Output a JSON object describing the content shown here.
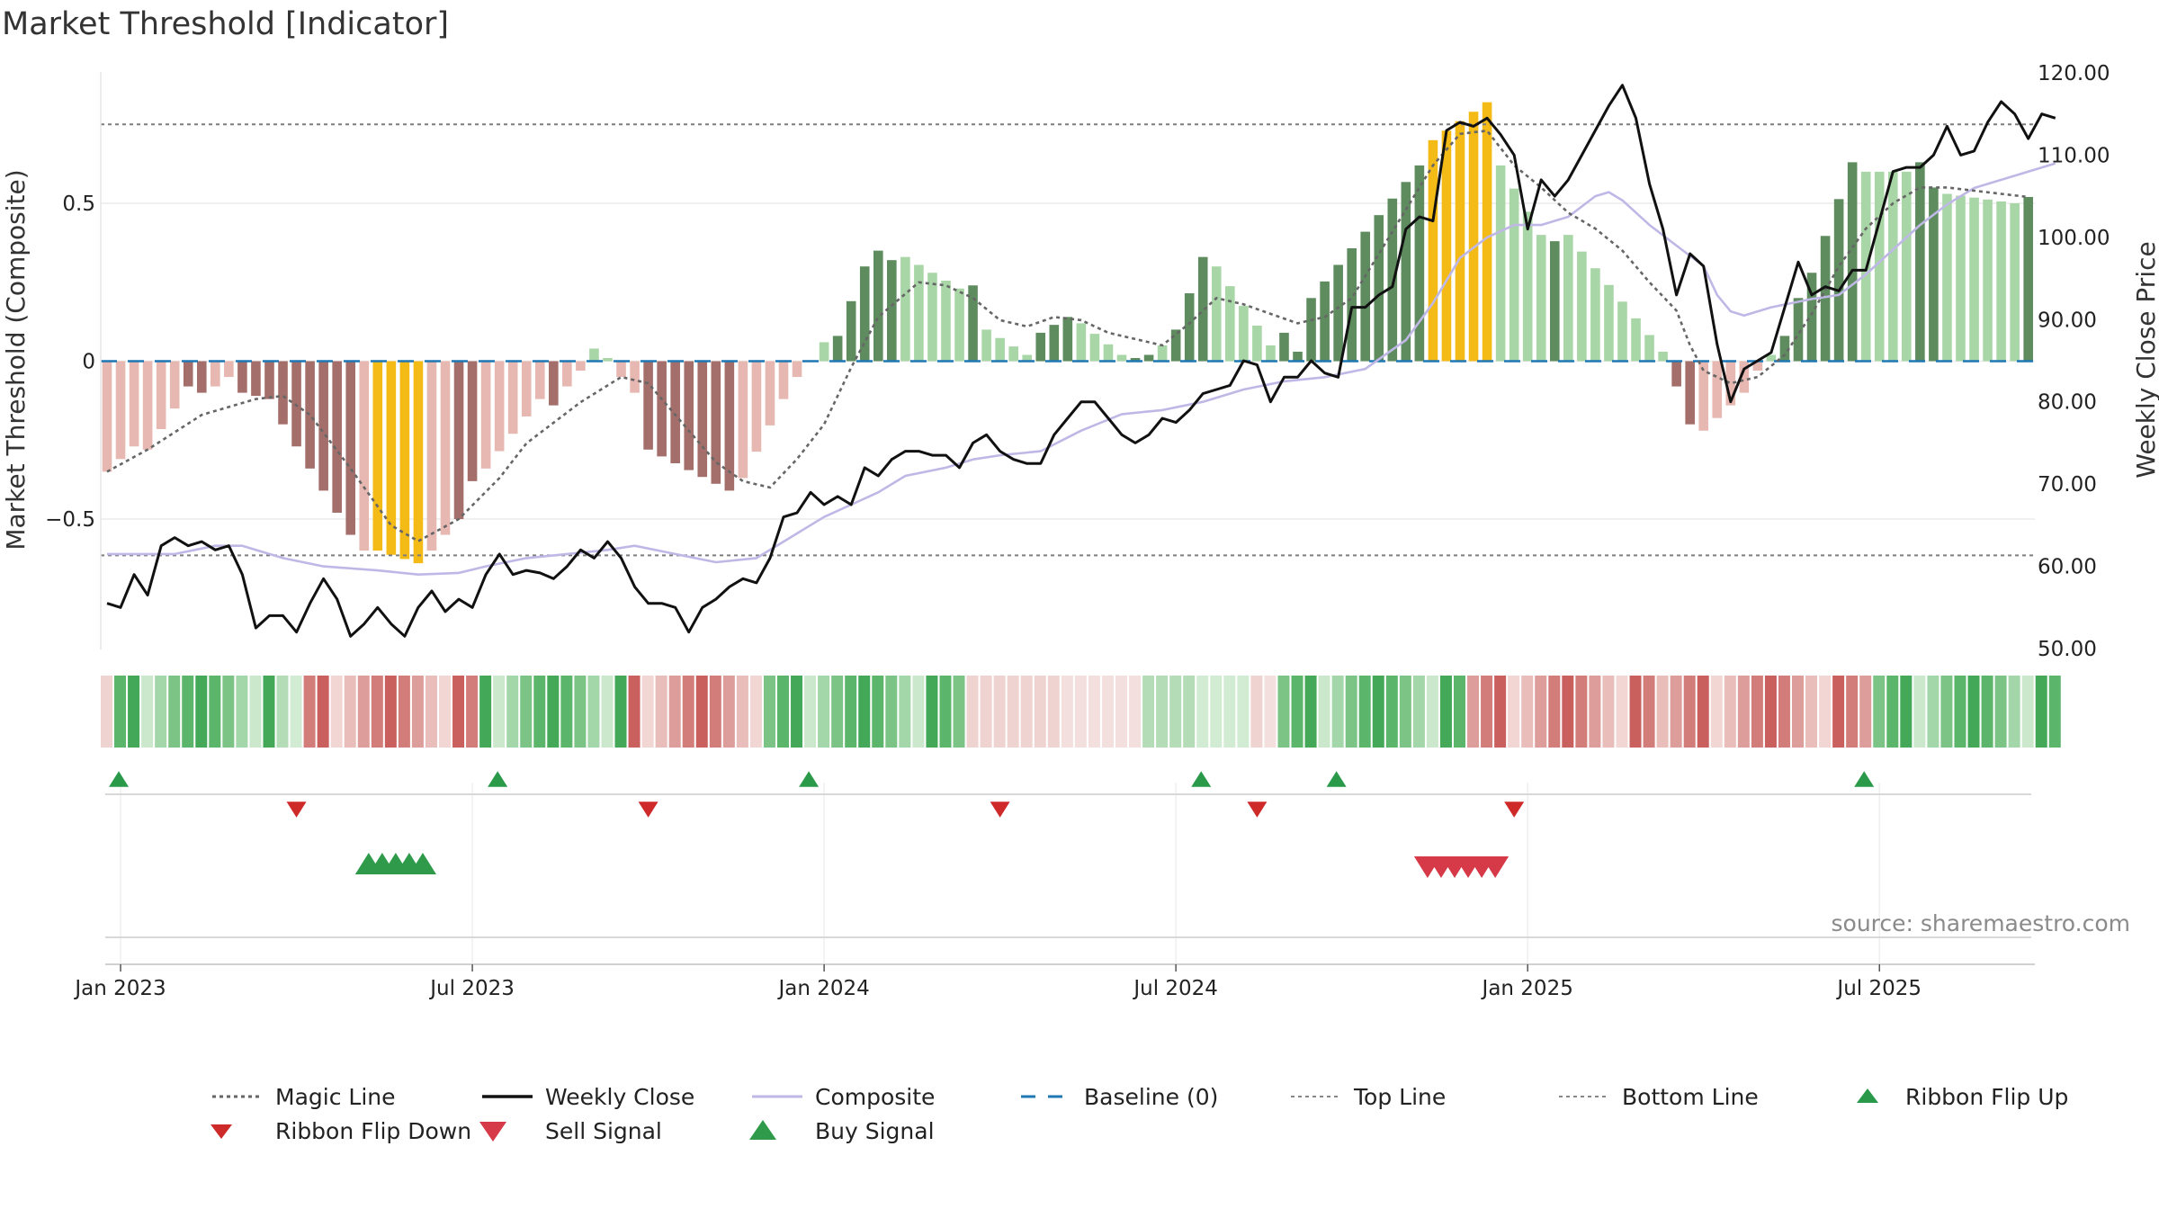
{
  "chart_data": {
    "type": "composite-indicator",
    "title": "Market Threshold [Indicator]",
    "ylabel_left": "Market Threshold (Composite)",
    "ylabel_right": "Weekly Close Price",
    "ylim_left": [
      -0.92,
      0.92
    ],
    "ylim_right": [
      50,
      120
    ],
    "yticks_left": [
      {
        "v": 0.5,
        "label": "0.5"
      },
      {
        "v": 0,
        "label": "0"
      },
      {
        "v": -0.5,
        "label": "−0.5"
      }
    ],
    "yticks_right": [
      {
        "v": 120,
        "label": "120.00"
      },
      {
        "v": 110,
        "label": "110.00"
      },
      {
        "v": 100,
        "label": "100.00"
      },
      {
        "v": 90,
        "label": "90.00"
      },
      {
        "v": 80,
        "label": "80.00"
      },
      {
        "v": 70,
        "label": "70.00"
      },
      {
        "v": 60,
        "label": "60.00"
      },
      {
        "v": 50,
        "label": "50.00"
      }
    ],
    "x_start": "2022-12-26",
    "week_count": 143,
    "x_ticks": [
      {
        "w": 1,
        "label": "Jan 2023"
      },
      {
        "w": 27,
        "label": "Jul 2023"
      },
      {
        "w": 53,
        "label": "Jan 2024"
      },
      {
        "w": 79,
        "label": "Jul 2024"
      },
      {
        "w": 105,
        "label": "Jan 2025"
      },
      {
        "w": 131,
        "label": "Jul 2025"
      }
    ],
    "top_line": 0.75,
    "bottom_line": -0.615,
    "baseline": 0,
    "bar_segments": [
      [
        0,
        -0.35,
        -0.27,
        "light-red"
      ],
      [
        3,
        -0.28,
        -0.15,
        "light-red"
      ],
      [
        6,
        -0.08,
        -0.1,
        "red"
      ],
      [
        8,
        -0.08,
        -0.05,
        "light-red"
      ],
      [
        10,
        -0.1,
        -0.11,
        "red"
      ],
      [
        12,
        -0.12,
        -0.2,
        "red"
      ],
      [
        14,
        -0.27,
        -0.55,
        "red"
      ],
      [
        19,
        -0.6,
        -0.62,
        "light-red"
      ],
      [
        20,
        -0.6,
        -0.64,
        "yellow"
      ],
      [
        24,
        -0.6,
        -0.55,
        "light-red"
      ],
      [
        26,
        -0.5,
        -0.38,
        "red"
      ],
      [
        28,
        -0.34,
        -0.12,
        "light-red"
      ],
      [
        33,
        -0.14,
        -0.14,
        "red"
      ],
      [
        34,
        -0.08,
        -0.03,
        "light-red"
      ],
      [
        36,
        0.04,
        0.01,
        "light-green"
      ],
      [
        38,
        -0.05,
        -0.1,
        "light-red"
      ],
      [
        40,
        -0.28,
        -0.41,
        "red"
      ],
      [
        47,
        -0.37,
        -0.12,
        "light-red"
      ],
      [
        51,
        -0.05,
        0.0,
        "light-red"
      ],
      [
        53,
        0.06,
        0.06,
        "light-green"
      ],
      [
        54,
        0.08,
        0.3,
        "green"
      ],
      [
        57,
        0.35,
        0.32,
        "green"
      ],
      [
        59,
        0.33,
        0.23,
        "light-green"
      ],
      [
        64,
        0.24,
        0.12,
        "green"
      ],
      [
        65,
        0.1,
        0.02,
        "light-green"
      ],
      [
        69,
        0.09,
        0.14,
        "green"
      ],
      [
        72,
        0.12,
        0.02,
        "light-green"
      ],
      [
        76,
        0.01,
        0.02,
        "green"
      ],
      [
        78,
        0.05,
        0.05,
        "light-green"
      ],
      [
        79,
        0.1,
        0.33,
        "green"
      ],
      [
        82,
        0.3,
        0.05,
        "light-green"
      ],
      [
        87,
        0.09,
        0.03,
        "green"
      ],
      [
        89,
        0.2,
        0.62,
        "green"
      ],
      [
        98,
        0.7,
        0.82,
        "yellow"
      ],
      [
        103,
        0.62,
        0.4,
        "light-green"
      ],
      [
        107,
        0.38,
        0.4,
        "green"
      ],
      [
        108,
        0.4,
        0.03,
        "light-green"
      ],
      [
        116,
        -0.08,
        -0.2,
        "red"
      ],
      [
        118,
        -0.22,
        -0.1,
        "light-red"
      ],
      [
        122,
        -0.03,
        0.02,
        "light-red"
      ],
      [
        123,
        0.02,
        0.04,
        "light-green"
      ],
      [
        124,
        0.08,
        0.2,
        "green"
      ],
      [
        126,
        0.28,
        0.63,
        "green"
      ],
      [
        130,
        0.6,
        0.6,
        "light-green"
      ],
      [
        134,
        0.63,
        0.55,
        "green"
      ],
      [
        136,
        0.53,
        0.5,
        "light-green"
      ],
      [
        142,
        0.52,
        0.52,
        "green"
      ]
    ],
    "magic_line": [
      [
        0,
        -0.35
      ],
      [
        3,
        -0.28
      ],
      [
        7,
        -0.17
      ],
      [
        11,
        -0.12
      ],
      [
        13,
        -0.11
      ],
      [
        15,
        -0.17
      ],
      [
        18,
        -0.34
      ],
      [
        21,
        -0.52
      ],
      [
        23,
        -0.57
      ],
      [
        26,
        -0.5
      ],
      [
        29,
        -0.37
      ],
      [
        31,
        -0.26
      ],
      [
        35,
        -0.13
      ],
      [
        38,
        -0.05
      ],
      [
        40,
        -0.07
      ],
      [
        42,
        -0.17
      ],
      [
        45,
        -0.32
      ],
      [
        47,
        -0.38
      ],
      [
        49,
        -0.4
      ],
      [
        51,
        -0.31
      ],
      [
        53,
        -0.2
      ],
      [
        55,
        -0.02
      ],
      [
        57,
        0.14
      ],
      [
        60,
        0.25
      ],
      [
        62,
        0.24
      ],
      [
        64,
        0.2
      ],
      [
        66,
        0.13
      ],
      [
        68,
        0.11
      ],
      [
        70,
        0.14
      ],
      [
        72,
        0.13
      ],
      [
        74,
        0.09
      ],
      [
        76,
        0.07
      ],
      [
        78,
        0.05
      ],
      [
        80,
        0.12
      ],
      [
        82,
        0.2
      ],
      [
        84,
        0.18
      ],
      [
        86,
        0.15
      ],
      [
        88,
        0.12
      ],
      [
        90,
        0.14
      ],
      [
        92,
        0.2
      ],
      [
        94,
        0.34
      ],
      [
        96,
        0.48
      ],
      [
        98,
        0.62
      ],
      [
        100,
        0.72
      ],
      [
        102,
        0.73
      ],
      [
        104,
        0.62
      ],
      [
        106,
        0.55
      ],
      [
        108,
        0.47
      ],
      [
        110,
        0.42
      ],
      [
        112,
        0.35
      ],
      [
        114,
        0.25
      ],
      [
        116,
        0.16
      ],
      [
        117,
        0.05
      ],
      [
        118,
        -0.03
      ],
      [
        120,
        -0.07
      ],
      [
        122,
        -0.05
      ],
      [
        124,
        0.02
      ],
      [
        126,
        0.15
      ],
      [
        128,
        0.3
      ],
      [
        130,
        0.42
      ],
      [
        132,
        0.5
      ],
      [
        134,
        0.55
      ],
      [
        136,
        0.55
      ],
      [
        138,
        0.54
      ],
      [
        140,
        0.53
      ],
      [
        142,
        0.52
      ]
    ],
    "weekly_close": [
      [
        0,
        55.5
      ],
      [
        1,
        55
      ],
      [
        2,
        59
      ],
      [
        3,
        56.5
      ],
      [
        4,
        62.5
      ],
      [
        5,
        63.5
      ],
      [
        6,
        62.5
      ],
      [
        7,
        63
      ],
      [
        8,
        62
      ],
      [
        9,
        62.5
      ],
      [
        10,
        59
      ],
      [
        11,
        52.5
      ],
      [
        12,
        54
      ],
      [
        13,
        54
      ],
      [
        14,
        52
      ],
      [
        15,
        55.5
      ],
      [
        16,
        58.5
      ],
      [
        17,
        56
      ],
      [
        18,
        51.5
      ],
      [
        19,
        53
      ],
      [
        20,
        55
      ],
      [
        21,
        53
      ],
      [
        22,
        51.5
      ],
      [
        23,
        55
      ],
      [
        24,
        57
      ],
      [
        25,
        54.5
      ],
      [
        26,
        56
      ],
      [
        27,
        55
      ],
      [
        28,
        59
      ],
      [
        29,
        61.5
      ],
      [
        30,
        59
      ],
      [
        31,
        59.5
      ],
      [
        32,
        59.2
      ],
      [
        33,
        58.5
      ],
      [
        34,
        60
      ],
      [
        35,
        62
      ],
      [
        36,
        61
      ],
      [
        37,
        63
      ],
      [
        38,
        61
      ],
      [
        39,
        57.5
      ],
      [
        40,
        55.5
      ],
      [
        41,
        55.5
      ],
      [
        42,
        55
      ],
      [
        43,
        52
      ],
      [
        44,
        55
      ],
      [
        45,
        56
      ],
      [
        46,
        57.5
      ],
      [
        47,
        58.5
      ],
      [
        48,
        58
      ],
      [
        49,
        61
      ],
      [
        50,
        66
      ],
      [
        51,
        66.5
      ],
      [
        52,
        69
      ],
      [
        53,
        67.5
      ],
      [
        54,
        68.5
      ],
      [
        55,
        67.5
      ],
      [
        56,
        72
      ],
      [
        57,
        71
      ],
      [
        58,
        73
      ],
      [
        59,
        74
      ],
      [
        60,
        74
      ],
      [
        61,
        73.5
      ],
      [
        62,
        73.5
      ],
      [
        63,
        72
      ],
      [
        64,
        75
      ],
      [
        65,
        76
      ],
      [
        66,
        74
      ],
      [
        67,
        73
      ],
      [
        68,
        72.5
      ],
      [
        69,
        72.5
      ],
      [
        70,
        76
      ],
      [
        71,
        78
      ],
      [
        72,
        80
      ],
      [
        73,
        80
      ],
      [
        74,
        78
      ],
      [
        75,
        76
      ],
      [
        76,
        75
      ],
      [
        77,
        76
      ],
      [
        78,
        78
      ],
      [
        79,
        77.5
      ],
      [
        80,
        79
      ],
      [
        81,
        81
      ],
      [
        82,
        81.5
      ],
      [
        83,
        82
      ],
      [
        84,
        85
      ],
      [
        85,
        84.5
      ],
      [
        86,
        80
      ],
      [
        87,
        83
      ],
      [
        88,
        83
      ],
      [
        89,
        85
      ],
      [
        90,
        83.5
      ],
      [
        91,
        83
      ],
      [
        92,
        91.5
      ],
      [
        93,
        91.5
      ],
      [
        94,
        93
      ],
      [
        95,
        94
      ],
      [
        96,
        101
      ],
      [
        97,
        102.5
      ],
      [
        98,
        102
      ],
      [
        99,
        113
      ],
      [
        100,
        114
      ],
      [
        101,
        113.5
      ],
      [
        102,
        114.5
      ],
      [
        103,
        112.5
      ],
      [
        104,
        110
      ],
      [
        105,
        101
      ],
      [
        106,
        107
      ],
      [
        107,
        105
      ],
      [
        108,
        107
      ],
      [
        109,
        110
      ],
      [
        110,
        113
      ],
      [
        111,
        116
      ],
      [
        112,
        118.5
      ],
      [
        113,
        114.5
      ],
      [
        114,
        106.5
      ],
      [
        115,
        101
      ],
      [
        116,
        93
      ],
      [
        117,
        98
      ],
      [
        118,
        96.5
      ],
      [
        119,
        87
      ],
      [
        120,
        80
      ],
      [
        121,
        84
      ],
      [
        122,
        85
      ],
      [
        123,
        86
      ],
      [
        124,
        91.5
      ],
      [
        125,
        97
      ],
      [
        126,
        93
      ],
      [
        127,
        94
      ],
      [
        128,
        93.5
      ],
      [
        129,
        96
      ],
      [
        130,
        96
      ],
      [
        131,
        102
      ],
      [
        132,
        108
      ],
      [
        133,
        108.5
      ],
      [
        134,
        108.5
      ],
      [
        135,
        110
      ],
      [
        136,
        113.5
      ],
      [
        137,
        110
      ],
      [
        138,
        110.5
      ],
      [
        139,
        114
      ],
      [
        140,
        116.5
      ],
      [
        141,
        115
      ],
      [
        142,
        112
      ],
      [
        143,
        115
      ],
      [
        144,
        114.5
      ]
    ],
    "composite": [
      [
        0,
        61.5
      ],
      [
        5,
        61.5
      ],
      [
        8,
        62.5
      ],
      [
        10,
        62.5
      ],
      [
        13,
        61
      ],
      [
        16,
        60
      ],
      [
        20,
        59.5
      ],
      [
        23,
        59
      ],
      [
        26,
        59.2
      ],
      [
        28,
        60
      ],
      [
        31,
        61
      ],
      [
        34,
        61.5
      ],
      [
        37,
        62
      ],
      [
        39,
        62.5
      ],
      [
        42,
        61.5
      ],
      [
        45,
        60.5
      ],
      [
        48,
        61
      ],
      [
        50,
        63
      ],
      [
        53,
        66
      ],
      [
        55,
        67.5
      ],
      [
        57,
        69
      ],
      [
        59,
        71
      ],
      [
        62,
        72
      ],
      [
        64,
        73
      ],
      [
        66,
        73.5
      ],
      [
        69,
        74
      ],
      [
        72,
        76.5
      ],
      [
        75,
        78.5
      ],
      [
        78,
        79
      ],
      [
        81,
        80
      ],
      [
        84,
        81.5
      ],
      [
        87,
        82.5
      ],
      [
        90,
        83
      ],
      [
        93,
        84
      ],
      [
        96,
        87.5
      ],
      [
        98,
        92
      ],
      [
        100,
        97.5
      ],
      [
        102,
        100
      ],
      [
        104,
        101.5
      ],
      [
        106,
        101.5
      ],
      [
        108,
        102.5
      ],
      [
        110,
        105
      ],
      [
        111,
        105.5
      ],
      [
        112,
        104.5
      ],
      [
        114,
        101.5
      ],
      [
        116,
        99
      ],
      [
        118,
        96.5
      ],
      [
        119,
        93
      ],
      [
        120,
        91
      ],
      [
        121,
        90.5
      ],
      [
        123,
        91.5
      ],
      [
        126,
        92.5
      ],
      [
        128,
        93
      ],
      [
        130,
        95.5
      ],
      [
        132,
        98.5
      ],
      [
        134,
        101.5
      ],
      [
        136,
        104
      ],
      [
        138,
        106
      ],
      [
        140,
        107
      ],
      [
        142,
        108
      ],
      [
        144,
        109
      ]
    ],
    "ribbon": [
      [
        0,
        1,
        "r1"
      ],
      [
        1,
        12,
        "g1"
      ],
      [
        13,
        14,
        "g2"
      ],
      [
        15,
        27,
        "r2"
      ],
      [
        28,
        38,
        "g1"
      ],
      [
        39,
        48,
        "r2"
      ],
      [
        49,
        63,
        "g1"
      ],
      [
        64,
        76,
        "r1"
      ],
      [
        77,
        84,
        "g2"
      ],
      [
        85,
        86,
        "r1"
      ],
      [
        87,
        100,
        "g1"
      ],
      [
        101,
        114,
        "r2"
      ],
      [
        115,
        130,
        "r2"
      ],
      [
        131,
        144,
        "g1"
      ]
    ],
    "ribbon_flip_up_weeks": [
      1,
      29,
      52,
      81,
      91,
      130
    ],
    "ribbon_flip_down_weeks": [
      14,
      40,
      66,
      85,
      104
    ],
    "buy_signal_weeks": [
      20,
      21,
      22,
      23,
      24
    ],
    "sell_signal_weeks": [
      98,
      99,
      100,
      101,
      102,
      103
    ],
    "colors": {
      "red": "#a46f6b",
      "light-red": "#e7b7b1",
      "green": "#5e8c5f",
      "light-green": "#a9d6a6",
      "yellow": "#f4bb17",
      "magic": "#666666",
      "close": "#111111",
      "composite": "#bfb8e6",
      "baseline": "#1f77b4",
      "flip_up": "#2a9a4a",
      "flip_down": "#cf2a2a",
      "sell": "#d63a48",
      "buy": "#2f9b4a"
    },
    "legend": [
      {
        "key": "magic",
        "label": "Magic Line"
      },
      {
        "key": "close",
        "label": "Weekly Close"
      },
      {
        "key": "composite",
        "label": "Composite"
      },
      {
        "key": "baseline",
        "label": "Baseline (0)"
      },
      {
        "key": "top",
        "label": "Top Line"
      },
      {
        "key": "bottom",
        "label": "Bottom Line"
      },
      {
        "key": "flip_up",
        "label": "Ribbon Flip Up"
      },
      {
        "key": "flip_down",
        "label": "Ribbon Flip Down"
      },
      {
        "key": "sell",
        "label": "Sell Signal"
      },
      {
        "key": "buy",
        "label": "Buy Signal"
      }
    ],
    "source": "source: sharemaestro.com"
  }
}
